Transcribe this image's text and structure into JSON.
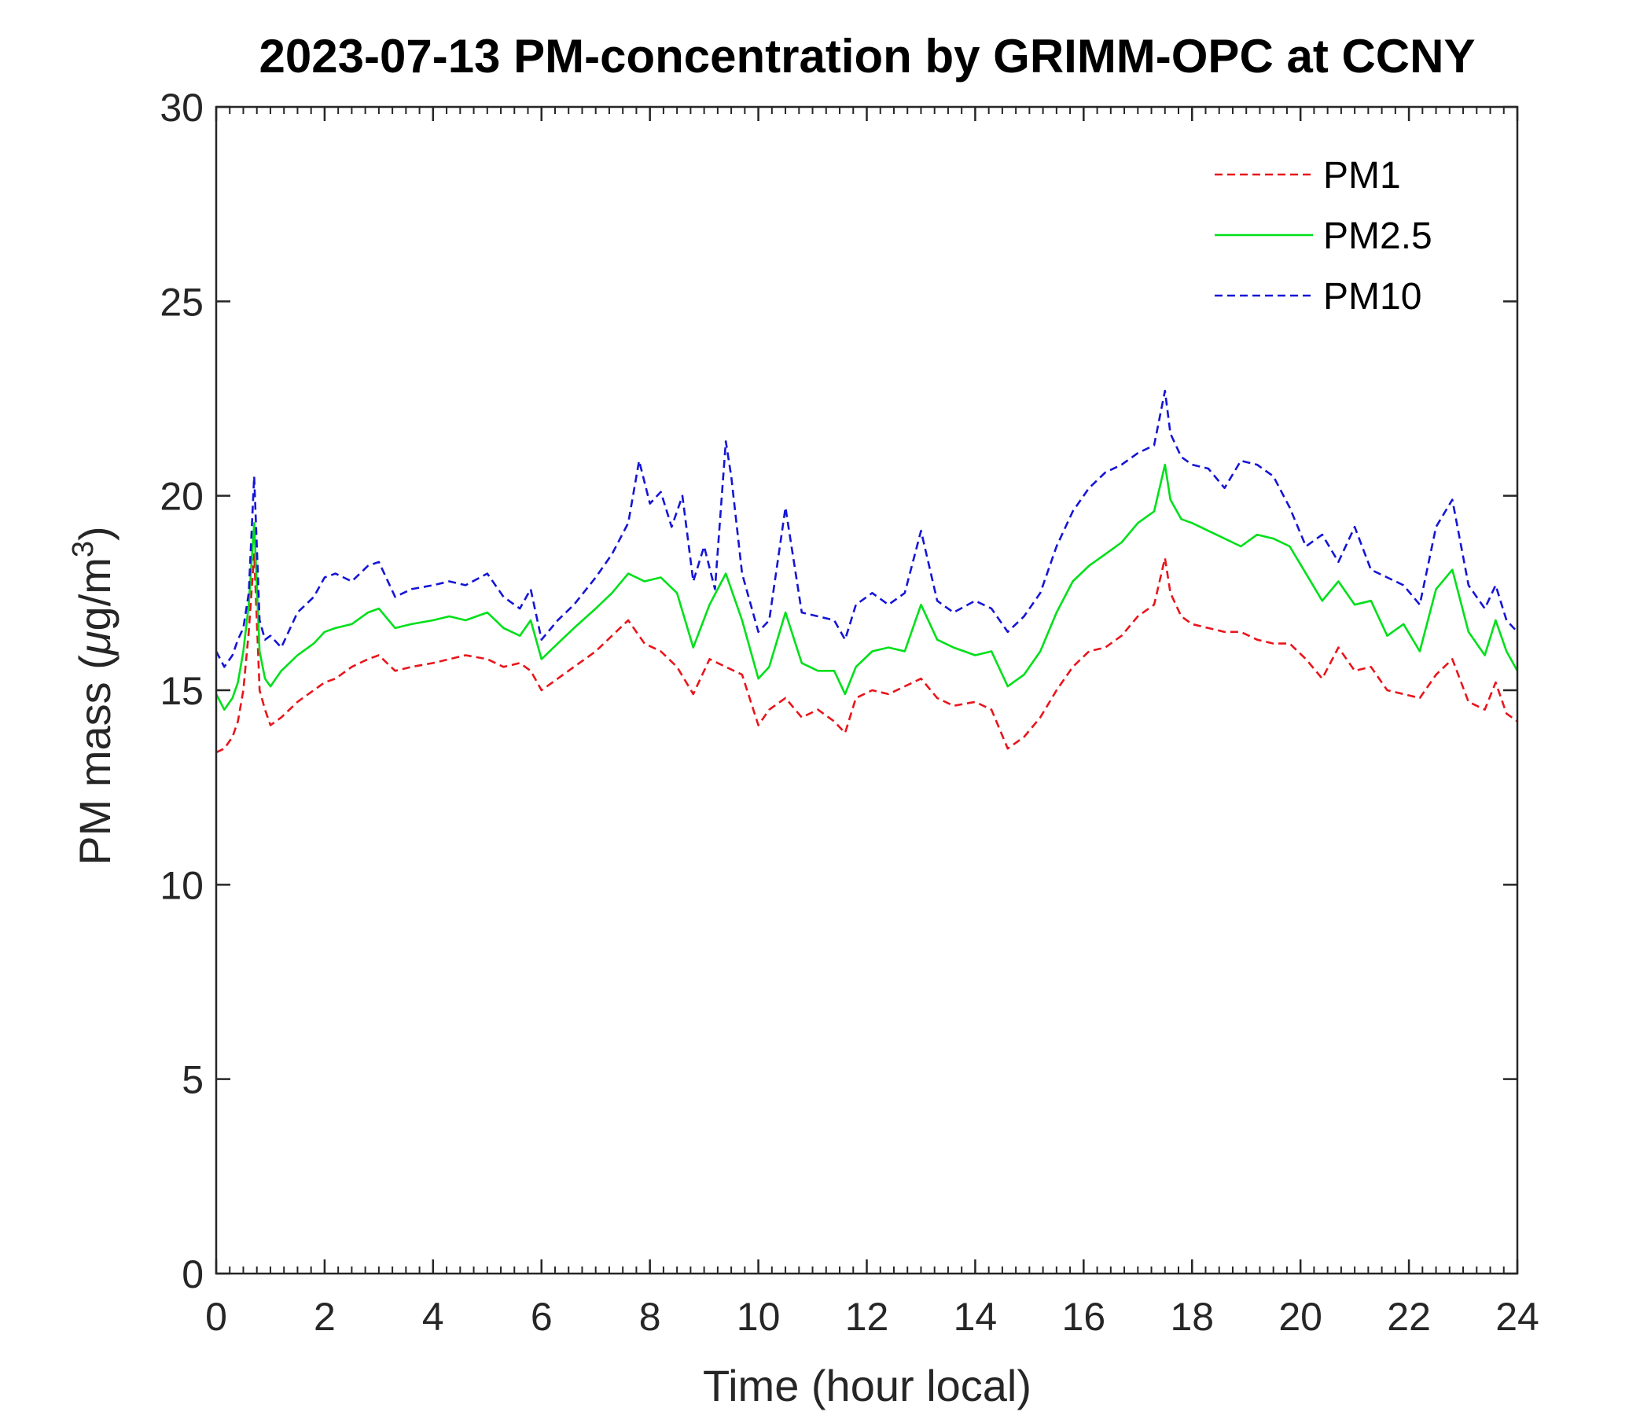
{
  "chart_data": {
    "type": "line",
    "title": "2023-07-13 PM-concentration by GRIMM-OPC at CCNY",
    "xlabel": "Time (hour local)",
    "ylabel_prefix": "PM mass (",
    "ylabel_mu": "μ",
    "ylabel_unit": "g/m",
    "ylabel_sup": "3",
    "ylabel_suffix": ")",
    "xlim": [
      0,
      24
    ],
    "ylim": [
      0,
      30
    ],
    "xticks": [
      0,
      2,
      4,
      6,
      8,
      10,
      12,
      14,
      16,
      18,
      20,
      22,
      24
    ],
    "xtick_labels": [
      "0",
      "2",
      "4",
      "6",
      "8",
      "10",
      "12",
      "14",
      "16",
      "18",
      "20",
      "22",
      "24"
    ],
    "yticks": [
      0,
      5,
      10,
      15,
      20,
      25,
      30
    ],
    "ytick_labels": [
      "0",
      "5",
      "10",
      "15",
      "20",
      "25",
      "30"
    ],
    "x_minor_step": 0.25,
    "legend_position": "top-right",
    "series": [
      {
        "name": "PM1",
        "color": "#e8151b",
        "dash": "dashed",
        "x": [
          0,
          0.15,
          0.3,
          0.4,
          0.5,
          0.6,
          0.7,
          0.8,
          0.9,
          1.0,
          1.2,
          1.5,
          1.8,
          2.0,
          2.2,
          2.5,
          2.8,
          3.0,
          3.3,
          3.6,
          4.0,
          4.3,
          4.6,
          5.0,
          5.3,
          5.6,
          5.8,
          6.0,
          6.3,
          6.6,
          7.0,
          7.3,
          7.6,
          7.9,
          8.2,
          8.5,
          8.8,
          9.1,
          9.4,
          9.7,
          10.0,
          10.2,
          10.5,
          10.8,
          11.1,
          11.4,
          11.6,
          11.8,
          12.1,
          12.4,
          12.7,
          13.0,
          13.3,
          13.6,
          14.0,
          14.3,
          14.6,
          14.9,
          15.2,
          15.5,
          15.8,
          16.1,
          16.4,
          16.7,
          17.0,
          17.3,
          17.5,
          17.6,
          17.8,
          18.0,
          18.3,
          18.6,
          18.9,
          19.2,
          19.5,
          19.8,
          20.1,
          20.4,
          20.7,
          21.0,
          21.3,
          21.6,
          21.9,
          22.2,
          22.5,
          22.8,
          23.1,
          23.4,
          23.6,
          23.8,
          24.0
        ],
        "y": [
          13.4,
          13.5,
          13.8,
          14.2,
          15.0,
          16.5,
          18.5,
          15.0,
          14.5,
          14.1,
          14.3,
          14.7,
          15.0,
          15.2,
          15.3,
          15.6,
          15.8,
          15.9,
          15.5,
          15.6,
          15.7,
          15.8,
          15.9,
          15.8,
          15.6,
          15.7,
          15.5,
          15.0,
          15.3,
          15.6,
          16.0,
          16.4,
          16.8,
          16.2,
          16.0,
          15.6,
          14.9,
          15.8,
          15.6,
          15.4,
          14.1,
          14.5,
          14.8,
          14.3,
          14.5,
          14.2,
          13.9,
          14.8,
          15.0,
          14.9,
          15.1,
          15.3,
          14.8,
          14.6,
          14.7,
          14.5,
          13.5,
          13.8,
          14.3,
          15.0,
          15.6,
          16.0,
          16.1,
          16.4,
          16.9,
          17.2,
          18.4,
          17.5,
          16.9,
          16.7,
          16.6,
          16.5,
          16.5,
          16.3,
          16.2,
          16.2,
          15.8,
          15.3,
          16.1,
          15.5,
          15.6,
          15.0,
          14.9,
          14.8,
          15.4,
          15.8,
          14.7,
          14.5,
          15.2,
          14.4,
          14.2
        ]
      },
      {
        "name": "PM2.5",
        "color": "#00e01a",
        "dash": "solid",
        "x": [
          0,
          0.15,
          0.3,
          0.4,
          0.5,
          0.6,
          0.7,
          0.8,
          0.9,
          1.0,
          1.2,
          1.5,
          1.8,
          2.0,
          2.2,
          2.5,
          2.8,
          3.0,
          3.3,
          3.6,
          4.0,
          4.3,
          4.6,
          5.0,
          5.3,
          5.6,
          5.8,
          6.0,
          6.3,
          6.6,
          7.0,
          7.3,
          7.6,
          7.9,
          8.2,
          8.5,
          8.8,
          9.1,
          9.4,
          9.7,
          10.0,
          10.2,
          10.5,
          10.8,
          11.1,
          11.4,
          11.6,
          11.8,
          12.1,
          12.4,
          12.7,
          13.0,
          13.3,
          13.6,
          14.0,
          14.3,
          14.6,
          14.9,
          15.2,
          15.5,
          15.8,
          16.1,
          16.4,
          16.7,
          17.0,
          17.3,
          17.5,
          17.6,
          17.8,
          18.0,
          18.3,
          18.6,
          18.9,
          19.2,
          19.5,
          19.8,
          20.1,
          20.4,
          20.7,
          21.0,
          21.3,
          21.6,
          21.9,
          22.2,
          22.5,
          22.8,
          23.1,
          23.4,
          23.6,
          23.8,
          24.0
        ],
        "y": [
          14.9,
          14.5,
          14.8,
          15.2,
          16.0,
          17.2,
          19.3,
          16.0,
          15.3,
          15.1,
          15.5,
          15.9,
          16.2,
          16.5,
          16.6,
          16.7,
          17.0,
          17.1,
          16.6,
          16.7,
          16.8,
          16.9,
          16.8,
          17.0,
          16.6,
          16.4,
          16.8,
          15.8,
          16.2,
          16.6,
          17.1,
          17.5,
          18.0,
          17.8,
          17.9,
          17.5,
          16.1,
          17.2,
          18.0,
          16.8,
          15.3,
          15.6,
          17.0,
          15.7,
          15.5,
          15.5,
          14.9,
          15.6,
          16.0,
          16.1,
          16.0,
          17.2,
          16.3,
          16.1,
          15.9,
          16.0,
          15.1,
          15.4,
          16.0,
          17.0,
          17.8,
          18.2,
          18.5,
          18.8,
          19.3,
          19.6,
          20.8,
          19.9,
          19.4,
          19.3,
          19.1,
          18.9,
          18.7,
          19.0,
          18.9,
          18.7,
          18.0,
          17.3,
          17.8,
          17.2,
          17.3,
          16.4,
          16.7,
          16.0,
          17.6,
          18.1,
          16.5,
          15.9,
          16.8,
          16.0,
          15.5
        ]
      },
      {
        "name": "PM10",
        "color": "#1515d6",
        "dash": "dashed",
        "x": [
          0,
          0.15,
          0.3,
          0.4,
          0.5,
          0.6,
          0.7,
          0.8,
          0.9,
          1.0,
          1.2,
          1.5,
          1.8,
          2.0,
          2.2,
          2.5,
          2.8,
          3.0,
          3.3,
          3.6,
          4.0,
          4.3,
          4.6,
          5.0,
          5.3,
          5.6,
          5.8,
          6.0,
          6.3,
          6.6,
          7.0,
          7.3,
          7.6,
          7.8,
          8.0,
          8.2,
          8.4,
          8.6,
          8.8,
          9.0,
          9.2,
          9.4,
          9.5,
          9.7,
          10.0,
          10.2,
          10.5,
          10.8,
          11.1,
          11.4,
          11.6,
          11.8,
          12.1,
          12.4,
          12.7,
          13.0,
          13.3,
          13.6,
          14.0,
          14.3,
          14.6,
          14.9,
          15.2,
          15.5,
          15.8,
          16.1,
          16.4,
          16.7,
          17.0,
          17.3,
          17.5,
          17.6,
          17.8,
          18.0,
          18.3,
          18.6,
          18.9,
          19.2,
          19.5,
          19.8,
          20.1,
          20.4,
          20.7,
          21.0,
          21.3,
          21.6,
          21.9,
          22.2,
          22.5,
          22.8,
          23.1,
          23.4,
          23.6,
          23.8,
          24.0
        ],
        "y": [
          16.0,
          15.6,
          15.9,
          16.3,
          16.6,
          17.5,
          20.5,
          16.8,
          16.3,
          16.4,
          16.1,
          17.0,
          17.4,
          17.9,
          18.0,
          17.8,
          18.2,
          18.3,
          17.4,
          17.6,
          17.7,
          17.8,
          17.7,
          18.0,
          17.4,
          17.1,
          17.6,
          16.3,
          16.8,
          17.2,
          17.9,
          18.5,
          19.3,
          20.9,
          19.8,
          20.1,
          19.2,
          20.0,
          17.8,
          18.7,
          17.6,
          21.4,
          20.5,
          18.0,
          16.5,
          16.8,
          19.7,
          17.0,
          16.9,
          16.8,
          16.3,
          17.2,
          17.5,
          17.2,
          17.5,
          19.1,
          17.3,
          17.0,
          17.3,
          17.1,
          16.5,
          16.9,
          17.5,
          18.7,
          19.6,
          20.2,
          20.6,
          20.8,
          21.1,
          21.3,
          22.7,
          21.6,
          21.0,
          20.8,
          20.7,
          20.2,
          20.9,
          20.8,
          20.5,
          19.7,
          18.7,
          19.0,
          18.3,
          19.2,
          18.1,
          17.9,
          17.7,
          17.2,
          19.2,
          19.9,
          17.7,
          17.1,
          17.7,
          16.8,
          16.5
        ]
      }
    ]
  }
}
